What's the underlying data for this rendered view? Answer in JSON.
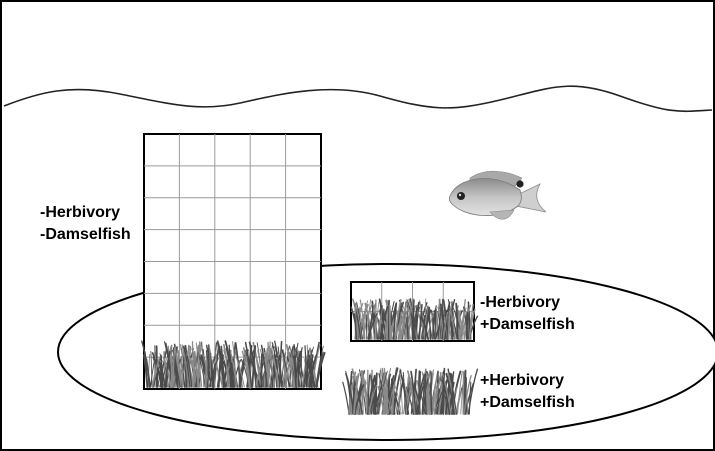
{
  "treatments": [
    {
      "herbivory": "-Herbivory",
      "damselfish": "-Damselfish"
    },
    {
      "herbivory": "-Herbivory",
      "damselfish": "+Damselfish"
    },
    {
      "herbivory": "+Herbivory",
      "damselfish": "+Damselfish"
    }
  ],
  "colors": {
    "outline": "#000000",
    "water_line": "#222222",
    "grid_line": "#9a9a9a",
    "grass_dark": "#4a4a4a",
    "grass_light": "#8a8a8a",
    "fish_body": "#b8b8b8"
  },
  "icons": [
    "seagrass-icon",
    "damselfish-icon"
  ]
}
